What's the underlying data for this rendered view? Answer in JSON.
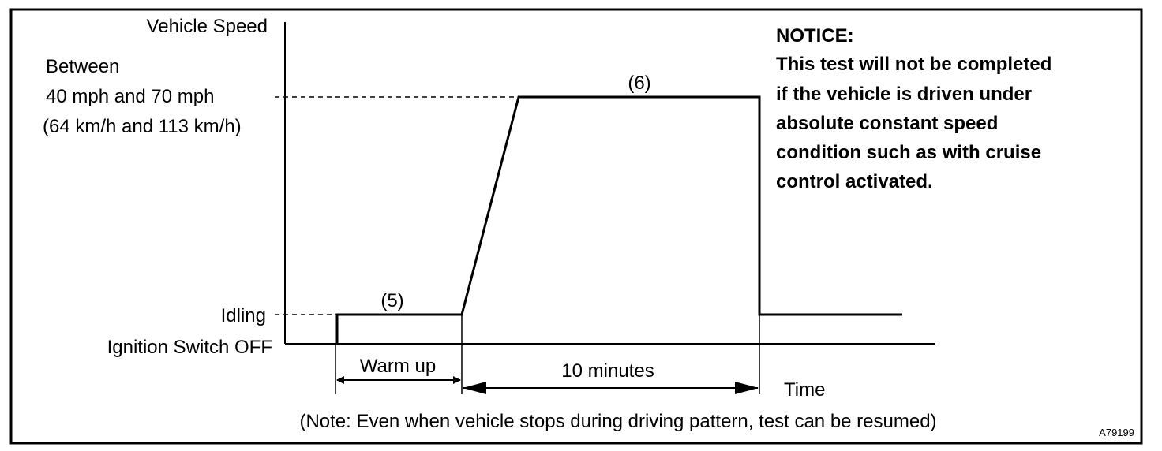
{
  "y_axis": {
    "title": "Vehicle Speed",
    "speed_range": [
      "Between",
      "40 mph and 70 mph",
      "(64 km/h and 113 km/h)"
    ],
    "idling": "Idling",
    "ignition_off": "Ignition Switch OFF"
  },
  "x_axis": {
    "title": "Time"
  },
  "steps": {
    "step5": "(5)",
    "step6": "(6)"
  },
  "intervals": {
    "warm_up": "Warm up",
    "ten_minutes": "10 minutes"
  },
  "notice": {
    "heading": "NOTICE:",
    "lines": [
      "This test will not be completed",
      "if the vehicle is driven under",
      "absolute constant speed",
      "condition such as with cruise",
      "control activated."
    ]
  },
  "footnote": "(Note: Even when vehicle stops during driving pattern, test can be resumed)",
  "figure_code": "A79199"
}
